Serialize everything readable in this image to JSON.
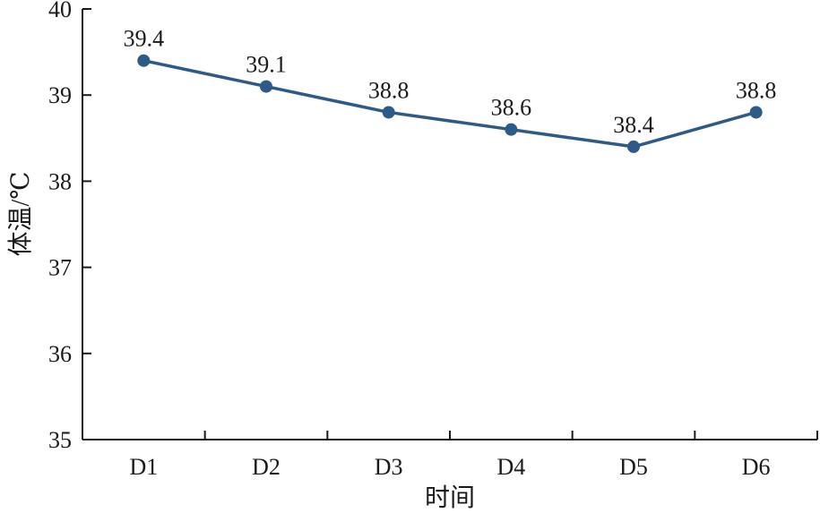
{
  "chart_data": {
    "type": "line",
    "categories": [
      "D1",
      "D2",
      "D3",
      "D4",
      "D5",
      "D6"
    ],
    "values": [
      39.4,
      39.1,
      38.8,
      38.6,
      38.4,
      38.8
    ],
    "data_labels": [
      "39.4",
      "39.1",
      "38.8",
      "38.6",
      "38.4",
      "38.8"
    ],
    "xlabel": "时间",
    "ylabel": "体温/℃",
    "ylim": [
      35,
      40
    ],
    "yticks": [
      "35",
      "36",
      "37",
      "38",
      "39",
      "40"
    ],
    "grid": false,
    "markers": true,
    "line_color": "#2e5a87",
    "axis_color": "#1a1a1a"
  }
}
